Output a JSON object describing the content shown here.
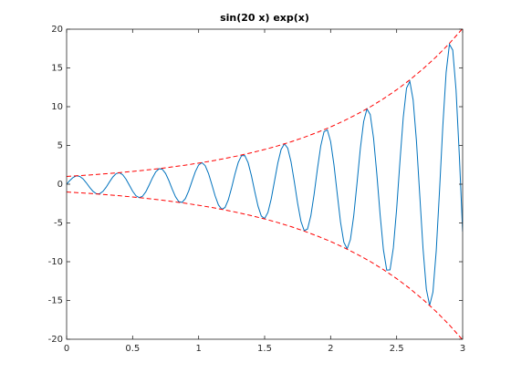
{
  "chart_data": {
    "type": "line",
    "title": "sin(20 x) exp(x)",
    "xlim": [
      0,
      3
    ],
    "ylim": [
      -20,
      20
    ],
    "xticks": [
      0,
      0.5,
      1,
      1.5,
      2,
      2.5,
      3
    ],
    "yticks": [
      -20,
      -15,
      -10,
      -5,
      0,
      5,
      10,
      15,
      20
    ],
    "series": [
      {
        "color": "#0072bd",
        "style": "solid",
        "x": [
          0,
          0.025,
          0.05,
          0.075,
          0.1,
          0.125,
          0.15,
          0.175,
          0.2,
          0.225,
          0.25,
          0.275,
          0.3,
          0.325,
          0.35,
          0.375,
          0.4,
          0.425,
          0.45,
          0.475,
          0.5,
          0.525,
          0.55,
          0.575,
          0.6,
          0.625,
          0.65,
          0.675,
          0.7,
          0.725,
          0.75,
          0.775,
          0.8,
          0.825,
          0.85,
          0.875,
          0.9,
          0.925,
          0.95,
          0.975,
          1,
          1.025,
          1.05,
          1.075,
          1.1,
          1.125,
          1.15,
          1.175,
          1.2,
          1.225,
          1.25,
          1.275,
          1.3,
          1.325,
          1.35,
          1.375,
          1.4,
          1.425,
          1.45,
          1.475,
          1.5,
          1.525,
          1.55,
          1.575,
          1.6,
          1.625,
          1.65,
          1.675,
          1.7,
          1.725,
          1.75,
          1.775,
          1.8,
          1.825,
          1.85,
          1.875,
          1.9,
          1.925,
          1.95,
          1.975,
          2,
          2.025,
          2.05,
          2.075,
          2.1,
          2.125,
          2.15,
          2.175,
          2.2,
          2.225,
          2.25,
          2.275,
          2.3,
          2.325,
          2.35,
          2.375,
          2.4,
          2.425,
          2.45,
          2.475,
          2.5,
          2.525,
          2.55,
          2.575,
          2.6,
          2.625,
          2.65,
          2.675,
          2.7,
          2.725,
          2.75,
          2.775,
          2.8,
          2.825,
          2.85,
          2.875,
          2.9,
          2.925,
          2.95,
          2.975,
          3
        ],
        "values": [
          0,
          0.49,
          0.88,
          1.08,
          1.0,
          0.68,
          0.16,
          -0.42,
          -0.92,
          -1.22,
          -1.23,
          -0.93,
          -0.38,
          0.3,
          0.93,
          1.36,
          1.48,
          1.22,
          0.65,
          -0.12,
          -0.9,
          -1.49,
          -1.73,
          -1.56,
          -0.98,
          -0.12,
          0.8,
          1.58,
          1.99,
          1.93,
          1.38,
          0.45,
          -0.64,
          -1.62,
          -2.25,
          -2.34,
          -1.85,
          -0.86,
          0.39,
          1.61,
          2.48,
          2.78,
          2.39,
          1.38,
          -0.03,
          -1.5,
          -2.67,
          -3.23,
          -3.01,
          -2.01,
          -0.46,
          1.29,
          2.8,
          3.68,
          3.69,
          2.77,
          1.1,
          -0.93,
          -2.83,
          -4.11,
          -4.43,
          -3.64,
          -1.9,
          0.41,
          2.73,
          4.49,
          5.21,
          4.65,
          2.9,
          0.32,
          -2.46,
          -4.78,
          -6.0,
          -5.78,
          -4.09,
          -1.29,
          1.98,
          4.92,
          6.77,
          7.02,
          5.51,
          2.53,
          -1.23,
          -4.89,
          -7.48,
          -8.34,
          -7.14,
          -4.08,
          0.16,
          4.58,
          8.07,
          9.71,
          8.99,
          5.97,
          1.3,
          -3.95,
          -8.47,
          -11.09,
          -11.05,
          -8.23,
          -3.2,
          2.9,
          8.59,
          12.4,
          13.28,
          10.87,
          5.6,
          -1.35,
          -8.31,
          -13.54,
          -15.64,
          -13.91,
          -8.58,
          -0.82,
          7.54,
          14.44,
          18.05,
          17.3,
          12.16,
          3.7,
          -6.12
        ]
      },
      {
        "color": "#ff0000",
        "style": "dashed",
        "x": [
          0,
          0.1,
          0.2,
          0.3,
          0.4,
          0.5,
          0.6,
          0.7,
          0.8,
          0.9,
          1,
          1.1,
          1.2,
          1.3,
          1.4,
          1.5,
          1.6,
          1.7,
          1.8,
          1.9,
          2,
          2.1,
          2.2,
          2.3,
          2.4,
          2.5,
          2.6,
          2.7,
          2.8,
          2.9,
          3
        ],
        "values": [
          1,
          1.11,
          1.22,
          1.35,
          1.49,
          1.65,
          1.82,
          2.01,
          2.23,
          2.46,
          2.72,
          3.0,
          3.32,
          3.67,
          4.06,
          4.48,
          4.95,
          5.47,
          6.05,
          6.69,
          7.39,
          8.17,
          9.03,
          9.97,
          11.02,
          12.18,
          13.46,
          14.88,
          16.44,
          18.17,
          20.09
        ]
      },
      {
        "color": "#ff0000",
        "style": "dashed",
        "x": [
          0,
          0.1,
          0.2,
          0.3,
          0.4,
          0.5,
          0.6,
          0.7,
          0.8,
          0.9,
          1,
          1.1,
          1.2,
          1.3,
          1.4,
          1.5,
          1.6,
          1.7,
          1.8,
          1.9,
          2,
          2.1,
          2.2,
          2.3,
          2.4,
          2.5,
          2.6,
          2.7,
          2.8,
          2.9,
          3
        ],
        "values": [
          -1,
          -1.11,
          -1.22,
          -1.35,
          -1.49,
          -1.65,
          -1.82,
          -2.01,
          -2.23,
          -2.46,
          -2.72,
          -3.0,
          -3.32,
          -3.67,
          -4.06,
          -4.48,
          -4.95,
          -5.47,
          -6.05,
          -6.69,
          -7.39,
          -8.17,
          -9.03,
          -9.97,
          -11.02,
          -12.18,
          -13.46,
          -14.88,
          -16.44,
          -18.17,
          -20.09
        ]
      }
    ]
  }
}
